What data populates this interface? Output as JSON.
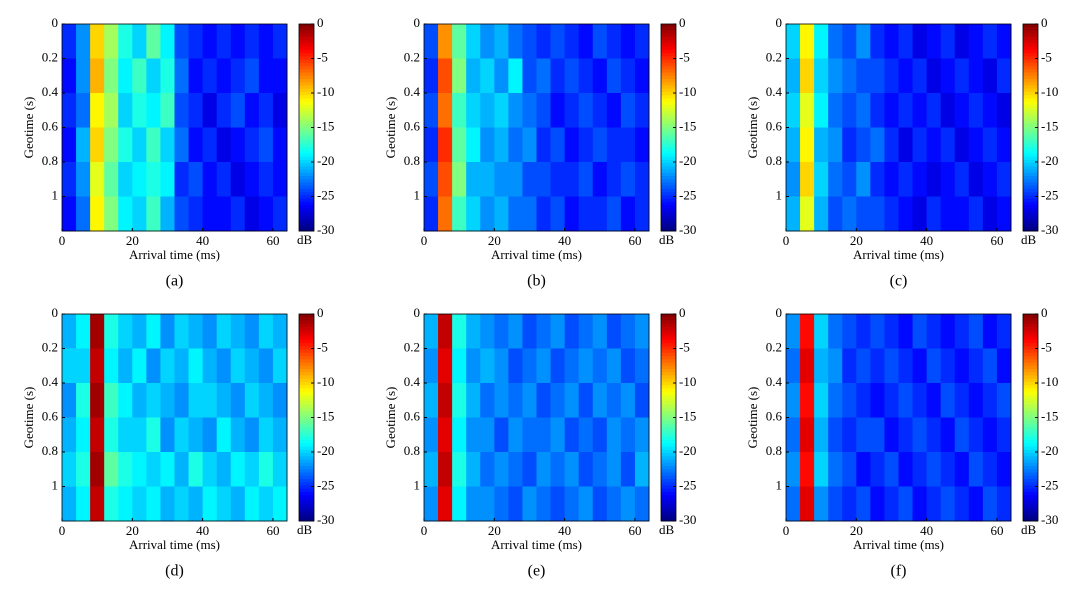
{
  "chart_data": [
    {
      "type": "heatmap",
      "caption": "(a)",
      "x_label": "Arrival time (ms)",
      "y_label": "Geotime (s)",
      "colorbar_label": "dB",
      "colormap": "jet",
      "xlim": [
        0,
        64
      ],
      "xticks": [
        0,
        20,
        40,
        60
      ],
      "ylim": [
        0,
        1.2
      ],
      "yticks": [
        0,
        0.2,
        0.4,
        0.6,
        0.8,
        1
      ],
      "clim": [
        -30,
        0
      ],
      "cticks": [
        0,
        -5,
        -10,
        -15,
        -20,
        -25,
        -30
      ],
      "z": [
        [
          -25,
          -22,
          -10,
          -14,
          -18,
          -20,
          -16,
          -19,
          -24,
          -25,
          -26,
          -25,
          -26,
          -25,
          -26,
          -25
        ],
        [
          -26,
          -22,
          -9,
          -15,
          -19,
          -17,
          -20,
          -18,
          -23,
          -26,
          -25,
          -26,
          -25,
          -24,
          -26,
          -26
        ],
        [
          -25,
          -23,
          -11,
          -14,
          -20,
          -18,
          -19,
          -17,
          -24,
          -25,
          -27,
          -25,
          -24,
          -26,
          -25,
          -27
        ],
        [
          -26,
          -21,
          -10,
          -15,
          -18,
          -20,
          -17,
          -20,
          -23,
          -26,
          -25,
          -27,
          -26,
          -25,
          -24,
          -26
        ],
        [
          -25,
          -22,
          -12,
          -16,
          -20,
          -19,
          -18,
          -19,
          -25,
          -24,
          -26,
          -25,
          -27,
          -26,
          -25,
          -26
        ],
        [
          -26,
          -23,
          -11,
          -15,
          -19,
          -20,
          -17,
          -21,
          -24,
          -25,
          -26,
          -26,
          -25,
          -27,
          -26,
          -25
        ]
      ]
    },
    {
      "type": "heatmap",
      "caption": "(b)",
      "x_label": "Arrival time (ms)",
      "y_label": "Geotime (s)",
      "colorbar_label": "dB",
      "colormap": "jet",
      "xlim": [
        0,
        64
      ],
      "xticks": [
        0,
        20,
        40,
        60
      ],
      "ylim": [
        0,
        1.2
      ],
      "yticks": [
        0,
        0.2,
        0.4,
        0.6,
        0.8,
        1
      ],
      "clim": [
        -30,
        0
      ],
      "cticks": [
        0,
        -5,
        -10,
        -15,
        -20,
        -25,
        -30
      ],
      "z": [
        [
          -24,
          -8,
          -16,
          -20,
          -22,
          -21,
          -23,
          -24,
          -25,
          -24,
          -25,
          -26,
          -24,
          -25,
          -26,
          -25
        ],
        [
          -25,
          -6,
          -15,
          -21,
          -20,
          -22,
          -19,
          -24,
          -23,
          -25,
          -24,
          -25,
          -26,
          -24,
          -25,
          -26
        ],
        [
          -24,
          -7,
          -17,
          -20,
          -21,
          -20,
          -22,
          -23,
          -24,
          -26,
          -25,
          -24,
          -25,
          -26,
          -24,
          -25
        ],
        [
          -25,
          -5,
          -16,
          -19,
          -22,
          -21,
          -23,
          -22,
          -25,
          -24,
          -26,
          -25,
          -24,
          -25,
          -25,
          -26
        ],
        [
          -24,
          -6,
          -15,
          -21,
          -21,
          -22,
          -22,
          -24,
          -24,
          -25,
          -25,
          -24,
          -26,
          -25,
          -24,
          -25
        ],
        [
          -25,
          -7,
          -17,
          -20,
          -22,
          -21,
          -23,
          -23,
          -25,
          -24,
          -26,
          -25,
          -25,
          -24,
          -26,
          -25
        ]
      ]
    },
    {
      "type": "heatmap",
      "caption": "(c)",
      "x_label": "Arrival time (ms)",
      "y_label": "Geotime (s)",
      "colorbar_label": "dB",
      "colormap": "jet",
      "xlim": [
        0,
        64
      ],
      "xticks": [
        0,
        20,
        40,
        60
      ],
      "ylim": [
        0,
        1.2
      ],
      "yticks": [
        0,
        0.2,
        0.4,
        0.6,
        0.8,
        1
      ],
      "clim": [
        -30,
        0
      ],
      "cticks": [
        0,
        -5,
        -10,
        -15,
        -20,
        -25,
        -30
      ],
      "z": [
        [
          -20,
          -11,
          -19,
          -23,
          -24,
          -22,
          -25,
          -26,
          -25,
          -27,
          -26,
          -25,
          -27,
          -26,
          -25,
          -26
        ],
        [
          -21,
          -10,
          -20,
          -22,
          -23,
          -24,
          -24,
          -25,
          -26,
          -25,
          -27,
          -26,
          -25,
          -26,
          -27,
          -25
        ],
        [
          -20,
          -12,
          -19,
          -23,
          -24,
          -23,
          -25,
          -26,
          -25,
          -26,
          -25,
          -27,
          -26,
          -25,
          -26,
          -27
        ],
        [
          -21,
          -11,
          -21,
          -22,
          -25,
          -24,
          -23,
          -25,
          -27,
          -25,
          -26,
          -25,
          -27,
          -26,
          -25,
          -26
        ],
        [
          -22,
          -10,
          -20,
          -23,
          -24,
          -22,
          -25,
          -26,
          -25,
          -26,
          -27,
          -26,
          -25,
          -27,
          -26,
          -25
        ],
        [
          -21,
          -12,
          -21,
          -24,
          -23,
          -24,
          -24,
          -25,
          -26,
          -27,
          -25,
          -26,
          -26,
          -25,
          -27,
          -26
        ]
      ]
    },
    {
      "type": "heatmap",
      "caption": "(d)",
      "x_label": "Arrival time (ms)",
      "y_label": "Geotime (s)",
      "colorbar_label": "dB",
      "colormap": "jet",
      "xlim": [
        0,
        64
      ],
      "xticks": [
        0,
        20,
        40,
        60
      ],
      "ylim": [
        0,
        1.2
      ],
      "yticks": [
        0,
        0.2,
        0.4,
        0.6,
        0.8,
        1
      ],
      "clim": [
        -30,
        0
      ],
      "cticks": [
        0,
        -5,
        -10,
        -15,
        -20,
        -25,
        -30
      ],
      "z": [
        [
          -21,
          -19,
          -1,
          -18,
          -20,
          -21,
          -19,
          -22,
          -20,
          -21,
          -22,
          -20,
          -21,
          -22,
          -20,
          -21
        ],
        [
          -20,
          -20,
          -2,
          -19,
          -21,
          -19,
          -22,
          -20,
          -21,
          -19,
          -21,
          -22,
          -20,
          -21,
          -22,
          -20
        ],
        [
          -22,
          -18,
          -1,
          -17,
          -19,
          -21,
          -20,
          -21,
          -22,
          -20,
          -20,
          -21,
          -22,
          -20,
          -21,
          -22
        ],
        [
          -21,
          -19,
          -2,
          -18,
          -20,
          -20,
          -18,
          -22,
          -20,
          -21,
          -22,
          -19,
          -21,
          -22,
          -20,
          -21
        ],
        [
          -20,
          -18,
          -1,
          -16,
          -18,
          -19,
          -20,
          -19,
          -21,
          -18,
          -20,
          -21,
          -19,
          -20,
          -18,
          -20
        ],
        [
          -21,
          -19,
          -2,
          -18,
          -19,
          -20,
          -19,
          -21,
          -20,
          -21,
          -19,
          -20,
          -21,
          -19,
          -20,
          -19
        ]
      ]
    },
    {
      "type": "heatmap",
      "caption": "(e)",
      "x_label": "Arrival time (ms)",
      "y_label": "Geotime (s)",
      "colorbar_label": "dB",
      "colormap": "jet",
      "xlim": [
        0,
        64
      ],
      "xticks": [
        0,
        20,
        40,
        60
      ],
      "ylim": [
        0,
        1.2
      ],
      "yticks": [
        0,
        0.2,
        0.4,
        0.6,
        0.8,
        1
      ],
      "clim": [
        -30,
        0
      ],
      "cticks": [
        0,
        -5,
        -10,
        -15,
        -20,
        -25,
        -30
      ],
      "z": [
        [
          -21,
          -2,
          -18,
          -21,
          -22,
          -23,
          -22,
          -24,
          -23,
          -22,
          -24,
          -23,
          -22,
          -24,
          -23,
          -22
        ],
        [
          -22,
          -3,
          -19,
          -22,
          -21,
          -22,
          -24,
          -23,
          -22,
          -24,
          -23,
          -22,
          -23,
          -22,
          -24,
          -23
        ],
        [
          -21,
          -2,
          -18,
          -21,
          -23,
          -22,
          -23,
          -22,
          -24,
          -23,
          -22,
          -24,
          -22,
          -23,
          -22,
          -24
        ],
        [
          -22,
          -3,
          -19,
          -22,
          -22,
          -24,
          -22,
          -23,
          -23,
          -22,
          -24,
          -23,
          -24,
          -22,
          -23,
          -22
        ],
        [
          -21,
          -2,
          -18,
          -21,
          -23,
          -22,
          -23,
          -24,
          -22,
          -23,
          -22,
          -24,
          -23,
          -22,
          -24,
          -21
        ],
        [
          -22,
          -3,
          -19,
          -22,
          -22,
          -23,
          -24,
          -22,
          -23,
          -24,
          -23,
          -22,
          -24,
          -23,
          -22,
          -23
        ]
      ]
    },
    {
      "type": "heatmap",
      "caption": "(f)",
      "x_label": "Arrival time (ms)",
      "y_label": "Geotime (s)",
      "colorbar_label": "dB",
      "colormap": "jet",
      "xlim": [
        0,
        64
      ],
      "xticks": [
        0,
        20,
        40,
        60
      ],
      "ylim": [
        0,
        1.2
      ],
      "yticks": [
        0,
        0.2,
        0.4,
        0.6,
        0.8,
        1
      ],
      "clim": [
        -30,
        0
      ],
      "cticks": [
        0,
        -5,
        -10,
        -15,
        -20,
        -25,
        -30
      ],
      "z": [
        [
          -22,
          -4,
          -20,
          -23,
          -24,
          -25,
          -24,
          -25,
          -26,
          -24,
          -25,
          -26,
          -25,
          -24,
          -26,
          -25
        ],
        [
          -23,
          -3,
          -21,
          -22,
          -25,
          -24,
          -25,
          -24,
          -25,
          -26,
          -24,
          -25,
          -26,
          -25,
          -24,
          -26
        ],
        [
          -22,
          -4,
          -20,
          -23,
          -24,
          -25,
          -26,
          -25,
          -24,
          -25,
          -26,
          -24,
          -25,
          -26,
          -25,
          -24
        ],
        [
          -23,
          -3,
          -21,
          -24,
          -25,
          -24,
          -24,
          -26,
          -25,
          -24,
          -25,
          -26,
          -24,
          -25,
          -26,
          -25
        ],
        [
          -22,
          -4,
          -20,
          -23,
          -24,
          -26,
          -25,
          -24,
          -26,
          -25,
          -24,
          -25,
          -26,
          -24,
          -25,
          -26
        ],
        [
          -23,
          -3,
          -22,
          -24,
          -25,
          -24,
          -26,
          -25,
          -24,
          -26,
          -25,
          -24,
          -25,
          -26,
          -24,
          -25
        ]
      ]
    }
  ]
}
